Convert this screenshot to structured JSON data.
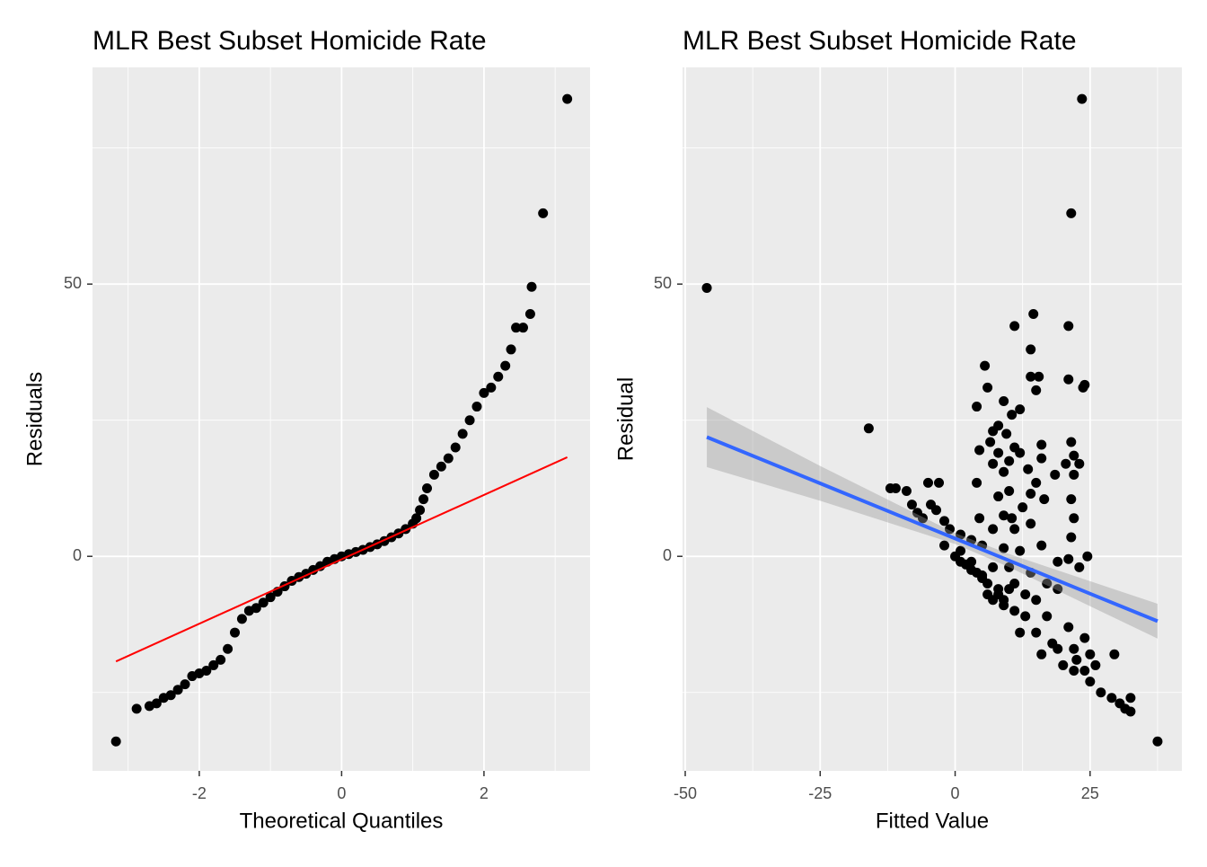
{
  "chart_data": [
    {
      "type": "scatter",
      "title": "MLR Best Subset Homicide Rate",
      "x_label": "Theoretical Quantiles",
      "y_label": "Residuals",
      "x": [
        -3.17,
        -2.88,
        -2.7,
        -2.6,
        -2.5,
        -2.4,
        -2.3,
        -2.2,
        -2.1,
        -2.0,
        -1.9,
        -1.8,
        -1.7,
        -1.6,
        -1.5,
        -1.4,
        -1.3,
        -1.2,
        -1.1,
        -1.0,
        -0.9,
        -0.8,
        -0.7,
        -0.6,
        -0.5,
        -0.4,
        -0.3,
        -0.2,
        -0.1,
        0,
        0.1,
        0.2,
        0.3,
        0.4,
        0.5,
        0.6,
        0.7,
        0.8,
        0.9,
        1.0,
        1.05,
        1.1,
        1.15,
        1.2,
        1.3,
        1.4,
        1.5,
        1.6,
        1.7,
        1.8,
        1.9,
        2.0,
        2.1,
        2.2,
        2.3,
        2.38,
        2.45,
        2.55,
        2.65,
        2.67,
        2.83,
        3.17
      ],
      "y": [
        -34,
        -28,
        -27.5,
        -27,
        -26,
        -25.5,
        -24.5,
        -23.5,
        -22,
        -21.5,
        -21,
        -20,
        -19,
        -17,
        -14,
        -11.5,
        -10,
        -9.5,
        -8.5,
        -7.5,
        -6.5,
        -5.5,
        -4.5,
        -3.8,
        -3.2,
        -2.5,
        -1.8,
        -1,
        -0.5,
        0,
        0.4,
        0.8,
        1.2,
        1.7,
        2.2,
        2.8,
        3.5,
        4.2,
        5,
        6,
        7,
        8.5,
        10.5,
        12.5,
        15,
        16.5,
        18,
        20,
        22.5,
        25,
        27.5,
        30,
        31,
        33,
        35,
        38,
        42,
        42,
        44.5,
        49.5,
        63,
        84
      ],
      "color": "#000000",
      "xlim": [
        -3.5,
        3.49
      ],
      "ylim": [
        -39.4,
        89.8
      ],
      "xticks": [
        -2,
        0,
        2
      ],
      "yticks": [
        0,
        50
      ],
      "x_minor_grid": [
        -3,
        -1,
        1,
        3
      ],
      "y_minor_grid": [
        -25,
        25,
        75
      ],
      "grid": true,
      "reference_line": {
        "x": [
          -3.17,
          3.17
        ],
        "y": [
          -19.3,
          18.2
        ],
        "color": "#ff0000"
      }
    },
    {
      "type": "scatter",
      "title": "MLR Best Subset Homicide Rate",
      "x_label": "Fitted Value",
      "y_label": "Residual",
      "x": [
        -46,
        -16,
        23.5,
        21.5,
        37.5,
        14.5,
        11,
        21,
        14,
        5.5,
        14,
        15.5,
        21,
        24,
        23.7,
        6,
        15,
        9,
        4,
        12,
        10.5,
        8,
        7,
        9.5,
        6.5,
        21.5,
        16,
        11,
        4.5,
        8,
        12,
        22,
        16,
        10,
        7,
        20.5,
        23,
        13.5,
        9,
        18.5,
        22,
        15,
        4,
        -5,
        -3,
        -12,
        -11,
        -9,
        10,
        14,
        8,
        16.5,
        21.5,
        -8,
        -4.5,
        12.5,
        -3.5,
        -7,
        9,
        4.5,
        10.5,
        22,
        -6,
        -2,
        14,
        -1,
        7,
        11,
        1,
        21.5,
        3,
        16,
        -2,
        5,
        9,
        1,
        12,
        24.5,
        3,
        21,
        19,
        7,
        10,
        14,
        23,
        5,
        11,
        17,
        8,
        13,
        19,
        15,
        9,
        11,
        13,
        17,
        21,
        15,
        24,
        12,
        18,
        19,
        22,
        16,
        25,
        20,
        22,
        24,
        26,
        29.5,
        25,
        27,
        29,
        30.5,
        31.5,
        32.5,
        32.5,
        22.5,
        0,
        2,
        4,
        6,
        8,
        1,
        3,
        5,
        6,
        7,
        9,
        10
      ],
      "y": [
        49.3,
        23.5,
        84,
        63,
        -34,
        44.5,
        42.3,
        42.3,
        38,
        35,
        33,
        33,
        32.5,
        31.5,
        31,
        31,
        30.5,
        28.5,
        27.5,
        27,
        26,
        24,
        23,
        22.5,
        21,
        21,
        20.5,
        20,
        19.5,
        19,
        19,
        18.5,
        18,
        17.5,
        17,
        17,
        17,
        16,
        15.5,
        15,
        15,
        13.5,
        13.5,
        13.5,
        13.5,
        12.5,
        12.5,
        12,
        12,
        11.5,
        11,
        10.5,
        10.5,
        9.5,
        9.5,
        9,
        8.5,
        8,
        7.5,
        7,
        7,
        7,
        7,
        6.5,
        6,
        5,
        5,
        5,
        4,
        3.5,
        3,
        2,
        2,
        2,
        1.5,
        1,
        1,
        0,
        -1,
        -0.5,
        -1,
        -2,
        -2,
        -3,
        -2,
        -4,
        -5,
        -5,
        -6,
        -7,
        -6,
        -8,
        -9,
        -10,
        -11,
        -11,
        -13,
        -14,
        -15,
        -14,
        -16,
        -17,
        -17,
        -18,
        -18,
        -20,
        -21,
        -21,
        -20,
        -18,
        -23,
        -25,
        -26,
        -27,
        -28,
        -26,
        -28.5,
        -19,
        0,
        -1.5,
        -3,
        -5,
        -7,
        -1,
        -2.5,
        -3.5,
        -7,
        -8,
        -8,
        -6
      ],
      "color": "#000000",
      "xlim": [
        -50.5,
        42
      ],
      "ylim": [
        -39.4,
        89.8
      ],
      "xticks": [
        -50,
        -25,
        0,
        25
      ],
      "yticks": [
        0,
        50
      ],
      "x_minor_grid": [
        -37.5,
        -12.5,
        12.5,
        37.5
      ],
      "y_minor_grid": [
        -25,
        25,
        75
      ],
      "grid": true,
      "smooth": {
        "x": [
          -46,
          -25,
          0,
          10,
          25,
          37.5
        ],
        "y": [
          21.9,
          13.4,
          3.27,
          -0.78,
          -6.86,
          -11.9
        ],
        "lower": [
          16.4,
          10.2,
          2.27,
          -1.98,
          -9.16,
          -15.1
        ],
        "upper": [
          27.4,
          16.6,
          4.27,
          0.42,
          -4.56,
          -8.7
        ],
        "color": "#3366ff",
        "band_color": "#999999"
      }
    }
  ]
}
